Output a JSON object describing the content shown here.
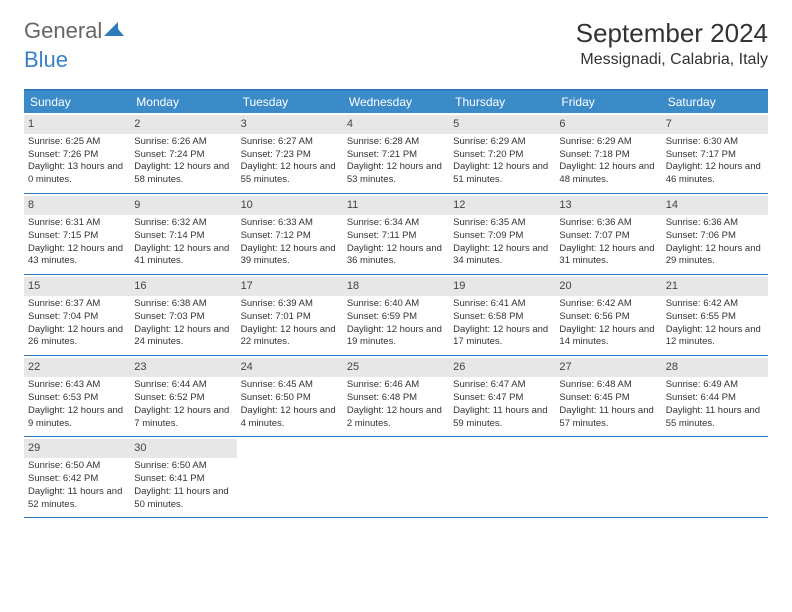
{
  "brand": {
    "first": "General",
    "second": "Blue"
  },
  "title": "September 2024",
  "location": "Messignadi, Calabria, Italy",
  "colors": {
    "header_bg": "#3b8bc9",
    "border": "#2b7bbd",
    "daystrip": "#e7e7e7",
    "text": "#333333",
    "brand_second": "#3b7fc4"
  },
  "weekdays": [
    "Sunday",
    "Monday",
    "Tuesday",
    "Wednesday",
    "Thursday",
    "Friday",
    "Saturday"
  ],
  "weeks": [
    [
      {
        "d": "1",
        "sr": "6:25 AM",
        "ss": "7:26 PM",
        "dl": "13 hours and 0 minutes."
      },
      {
        "d": "2",
        "sr": "6:26 AM",
        "ss": "7:24 PM",
        "dl": "12 hours and 58 minutes."
      },
      {
        "d": "3",
        "sr": "6:27 AM",
        "ss": "7:23 PM",
        "dl": "12 hours and 55 minutes."
      },
      {
        "d": "4",
        "sr": "6:28 AM",
        "ss": "7:21 PM",
        "dl": "12 hours and 53 minutes."
      },
      {
        "d": "5",
        "sr": "6:29 AM",
        "ss": "7:20 PM",
        "dl": "12 hours and 51 minutes."
      },
      {
        "d": "6",
        "sr": "6:29 AM",
        "ss": "7:18 PM",
        "dl": "12 hours and 48 minutes."
      },
      {
        "d": "7",
        "sr": "6:30 AM",
        "ss": "7:17 PM",
        "dl": "12 hours and 46 minutes."
      }
    ],
    [
      {
        "d": "8",
        "sr": "6:31 AM",
        "ss": "7:15 PM",
        "dl": "12 hours and 43 minutes."
      },
      {
        "d": "9",
        "sr": "6:32 AM",
        "ss": "7:14 PM",
        "dl": "12 hours and 41 minutes."
      },
      {
        "d": "10",
        "sr": "6:33 AM",
        "ss": "7:12 PM",
        "dl": "12 hours and 39 minutes."
      },
      {
        "d": "11",
        "sr": "6:34 AM",
        "ss": "7:11 PM",
        "dl": "12 hours and 36 minutes."
      },
      {
        "d": "12",
        "sr": "6:35 AM",
        "ss": "7:09 PM",
        "dl": "12 hours and 34 minutes."
      },
      {
        "d": "13",
        "sr": "6:36 AM",
        "ss": "7:07 PM",
        "dl": "12 hours and 31 minutes."
      },
      {
        "d": "14",
        "sr": "6:36 AM",
        "ss": "7:06 PM",
        "dl": "12 hours and 29 minutes."
      }
    ],
    [
      {
        "d": "15",
        "sr": "6:37 AM",
        "ss": "7:04 PM",
        "dl": "12 hours and 26 minutes."
      },
      {
        "d": "16",
        "sr": "6:38 AM",
        "ss": "7:03 PM",
        "dl": "12 hours and 24 minutes."
      },
      {
        "d": "17",
        "sr": "6:39 AM",
        "ss": "7:01 PM",
        "dl": "12 hours and 22 minutes."
      },
      {
        "d": "18",
        "sr": "6:40 AM",
        "ss": "6:59 PM",
        "dl": "12 hours and 19 minutes."
      },
      {
        "d": "19",
        "sr": "6:41 AM",
        "ss": "6:58 PM",
        "dl": "12 hours and 17 minutes."
      },
      {
        "d": "20",
        "sr": "6:42 AM",
        "ss": "6:56 PM",
        "dl": "12 hours and 14 minutes."
      },
      {
        "d": "21",
        "sr": "6:42 AM",
        "ss": "6:55 PM",
        "dl": "12 hours and 12 minutes."
      }
    ],
    [
      {
        "d": "22",
        "sr": "6:43 AM",
        "ss": "6:53 PM",
        "dl": "12 hours and 9 minutes."
      },
      {
        "d": "23",
        "sr": "6:44 AM",
        "ss": "6:52 PM",
        "dl": "12 hours and 7 minutes."
      },
      {
        "d": "24",
        "sr": "6:45 AM",
        "ss": "6:50 PM",
        "dl": "12 hours and 4 minutes."
      },
      {
        "d": "25",
        "sr": "6:46 AM",
        "ss": "6:48 PM",
        "dl": "12 hours and 2 minutes."
      },
      {
        "d": "26",
        "sr": "6:47 AM",
        "ss": "6:47 PM",
        "dl": "11 hours and 59 minutes."
      },
      {
        "d": "27",
        "sr": "6:48 AM",
        "ss": "6:45 PM",
        "dl": "11 hours and 57 minutes."
      },
      {
        "d": "28",
        "sr": "6:49 AM",
        "ss": "6:44 PM",
        "dl": "11 hours and 55 minutes."
      }
    ],
    [
      {
        "d": "29",
        "sr": "6:50 AM",
        "ss": "6:42 PM",
        "dl": "11 hours and 52 minutes."
      },
      {
        "d": "30",
        "sr": "6:50 AM",
        "ss": "6:41 PM",
        "dl": "11 hours and 50 minutes."
      },
      null,
      null,
      null,
      null,
      null
    ]
  ],
  "labels": {
    "sunrise": "Sunrise: ",
    "sunset": "Sunset: ",
    "daylight": "Daylight: "
  }
}
